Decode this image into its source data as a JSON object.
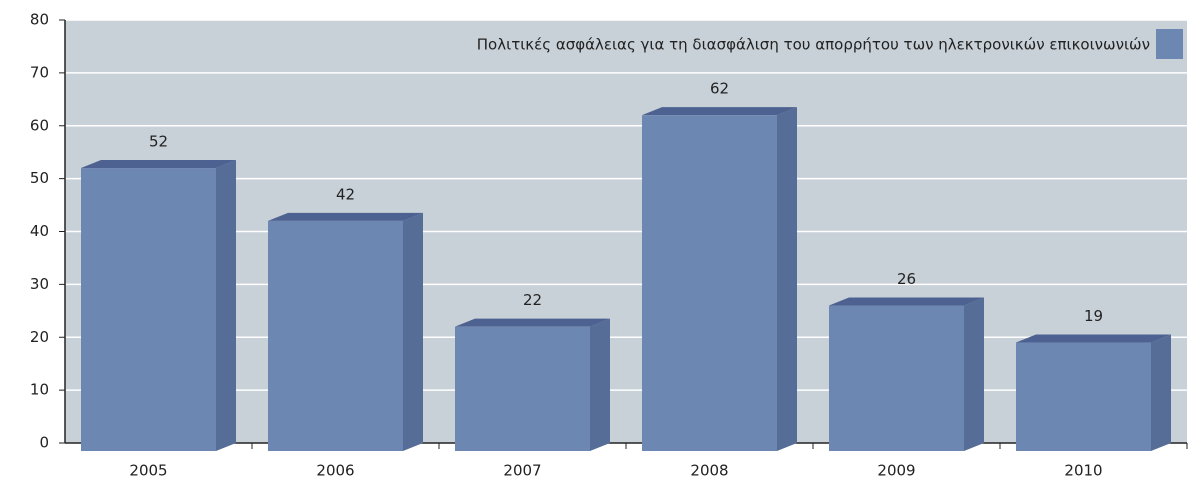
{
  "chart_data": {
    "type": "bar",
    "categories": [
      "2005",
      "2006",
      "2007",
      "2008",
      "2009",
      "2010"
    ],
    "series": [
      {
        "name": "Πολιτικές ασφάλειας  για τη διασφάλιση του απορρήτου των ηλεκτρονικών επικοινωνιών",
        "color": "#6d87b3",
        "values": [
          52,
          42,
          22,
          62,
          26,
          19
        ]
      }
    ],
    "ylim": [
      0,
      80
    ],
    "yticks": [
      0,
      10,
      20,
      30,
      40,
      50,
      60,
      70,
      80
    ],
    "grid": true,
    "legend": "top-right"
  }
}
